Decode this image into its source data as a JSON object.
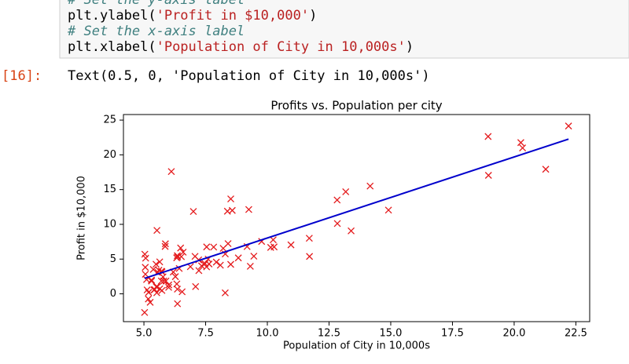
{
  "notebook": {
    "code_lines": [
      [
        "# Set the y-axis label"
      ],
      [
        "plt.ylabel(",
        "'Profit in $10,000'",
        ")"
      ],
      [
        "# Set the x-axis label"
      ],
      [
        "plt.xlabel(",
        "'Population of City in 10,000s'",
        ")"
      ]
    ],
    "prompt": "[16]:",
    "output": "Text(0.5, 0, 'Population of City in 10,000s')"
  },
  "chart_data": {
    "type": "scatter",
    "title": "Profits vs. Population per city",
    "x_label": "Population of City in 10,000s",
    "y_label": "Profit in $10,000",
    "xlim": [
      4.17,
      23.06
    ],
    "ylim": [
      -4.0,
      25.8
    ],
    "xticks": [
      {
        "value": 5,
        "label": "5.0"
      },
      {
        "value": 7.5,
        "label": "7.5"
      },
      {
        "value": 10,
        "label": "10.0"
      },
      {
        "value": 12.5,
        "label": "12.5"
      },
      {
        "value": 15,
        "label": "15.0"
      },
      {
        "value": 17.5,
        "label": "17.5"
      },
      {
        "value": 20,
        "label": "20.0"
      },
      {
        "value": 22.5,
        "label": "22.5"
      }
    ],
    "yticks": [
      0,
      5,
      10,
      15,
      20,
      25
    ],
    "grid": false,
    "series": [
      {
        "type": "scatter",
        "marker": "x",
        "color": "#e41a1c",
        "x": [
          6.1101,
          5.5277,
          8.5186,
          7.0032,
          5.8598,
          8.3829,
          7.4764,
          8.5781,
          6.4862,
          5.0546,
          5.7107,
          14.164,
          5.734,
          8.4084,
          5.6407,
          5.3794,
          6.3654,
          5.1301,
          6.4296,
          7.0708,
          6.1891,
          20.27,
          5.4901,
          6.3261,
          5.5649,
          18.945,
          12.828,
          10.957,
          13.176,
          22.203,
          5.2524,
          6.5894,
          9.2482,
          5.8918,
          8.2111,
          7.9334,
          8.0959,
          5.6063,
          12.836,
          6.3534,
          5.4069,
          6.8825,
          11.708,
          5.7737,
          7.8247,
          7.0931,
          5.0702,
          5.8014,
          11.7,
          5.5416,
          7.5402,
          5.3077,
          7.4239,
          7.6031,
          6.3328,
          6.3589,
          6.2742,
          5.6397,
          9.3102,
          9.4536,
          8.8254,
          5.1793,
          21.279,
          14.908,
          18.959,
          7.2182,
          8.2951,
          10.236,
          5.4994,
          20.341,
          10.136,
          7.3345,
          6.0062,
          7.2259,
          5.0269,
          6.5479,
          7.5386,
          5.0365,
          10.274,
          5.1077,
          5.7292,
          5.1884,
          6.3557,
          9.7687,
          6.5159,
          8.5172,
          9.1802,
          6.002,
          5.5204,
          5.0594,
          5.7077,
          7.6366,
          5.8707,
          5.3054,
          8.2934,
          13.394,
          5.4369
        ],
        "values": [
          17.592,
          9.1302,
          13.662,
          11.854,
          6.8233,
          11.886,
          4.3483,
          12,
          6.5987,
          3.8166,
          3.2522,
          15.505,
          3.1551,
          7.2258,
          0.71618,
          3.5129,
          5.3048,
          0.56077,
          3.6518,
          5.3893,
          3.1386,
          21.767,
          4.263,
          5.1875,
          3.0825,
          22.638,
          13.501,
          7.0467,
          14.692,
          24.147,
          -1.22,
          5.9966,
          12.134,
          1.8495,
          6.5426,
          4.5623,
          4.1164,
          3.3928,
          10.117,
          5.4974,
          0.55657,
          3.9115,
          5.3854,
          2.4406,
          6.7318,
          1.0463,
          5.1337,
          1.844,
          8.0043,
          1.0179,
          6.7504,
          1.8396,
          4.2885,
          4.9981,
          1.4233,
          -1.4211,
          2.4756,
          4.6042,
          3.9624,
          5.4141,
          5.1694,
          -0.74279,
          17.929,
          12.054,
          17.054,
          4.8852,
          5.7442,
          7.7754,
          1.0173,
          20.992,
          6.6799,
          4.0259,
          1.2784,
          3.3411,
          -2.6807,
          0.29678,
          3.8845,
          5.7014,
          6.7526,
          2.0576,
          0.47953,
          0.20421,
          0.67861,
          7.5435,
          5.3436,
          4.2415,
          6.7981,
          0.92695,
          0.152,
          2.8214,
          1.8451,
          4.2959,
          7.2029,
          1.9869,
          0.14454,
          9.0551,
          0.61705
        ]
      },
      {
        "type": "line",
        "color": "#0000cc",
        "x": [
          5.0269,
          22.203
        ],
        "values": [
          2.233,
          22.268
        ]
      }
    ]
  }
}
